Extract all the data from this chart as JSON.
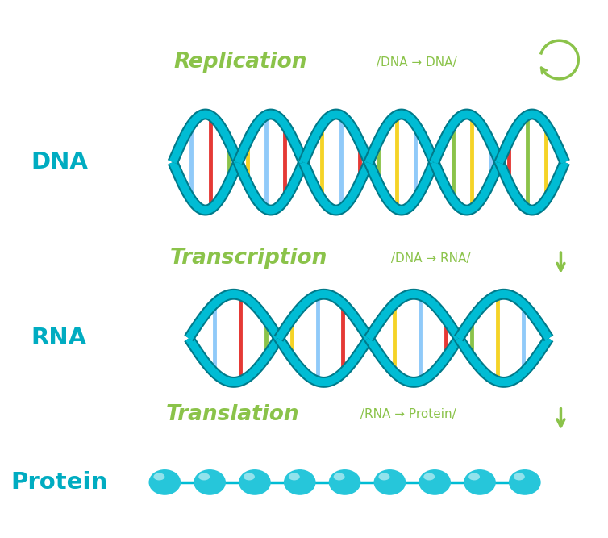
{
  "bg_color": "#ffffff",
  "dna_color": "#00bcd4",
  "dna_color_dark": "#007a8a",
  "label_color": "#00acc1",
  "process_color": "#8bc34a",
  "arrow_color": "#8bc34a",
  "bar_yellow": "#f5d327",
  "bar_green": "#8bc34a",
  "bar_red": "#e53935",
  "bar_blue": "#90caf9",
  "replication_text": "Replication",
  "replication_sub": " /DNA → DNA/",
  "transcription_text": "Transcription",
  "transcription_sub": " /DNA → RNA/",
  "translation_text": "Translation",
  "translation_sub": " /RNA → Protein/",
  "dna_label": "DNA",
  "rna_label": "RNA",
  "protein_label": "Protein",
  "protein_bead_color": "#26c6da",
  "protein_line_color": "#00bcd4",
  "num_protein_beads": 9
}
